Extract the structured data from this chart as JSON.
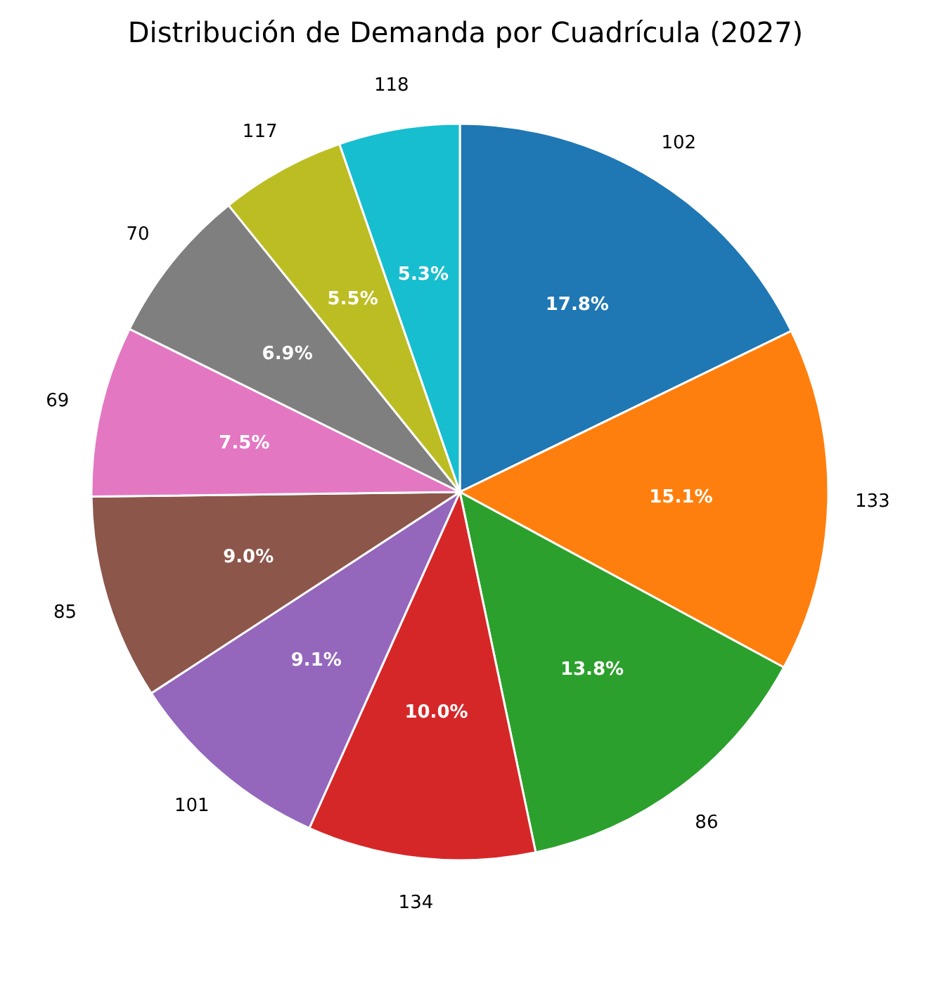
{
  "chart_data": {
    "type": "pie",
    "title": "Distribución de Demanda por Cuadrícula (2027)",
    "categories": [
      "102",
      "133",
      "86",
      "134",
      "101",
      "85",
      "69",
      "70",
      "117",
      "118"
    ],
    "values": [
      17.8,
      15.1,
      13.8,
      10.0,
      9.1,
      9.0,
      7.5,
      6.9,
      5.5,
      5.3
    ],
    "value_labels": [
      "17.8%",
      "15.1%",
      "13.8%",
      "10.0%",
      "9.1%",
      "9.0%",
      "7.5%",
      "6.9%",
      "5.5%",
      "5.3%"
    ],
    "colors": [
      "#1f77b4",
      "#ff7f0e",
      "#2ca02c",
      "#d62728",
      "#9467bd",
      "#8c564b",
      "#e377c2",
      "#7f7f7f",
      "#bcbd22",
      "#17becf"
    ]
  }
}
